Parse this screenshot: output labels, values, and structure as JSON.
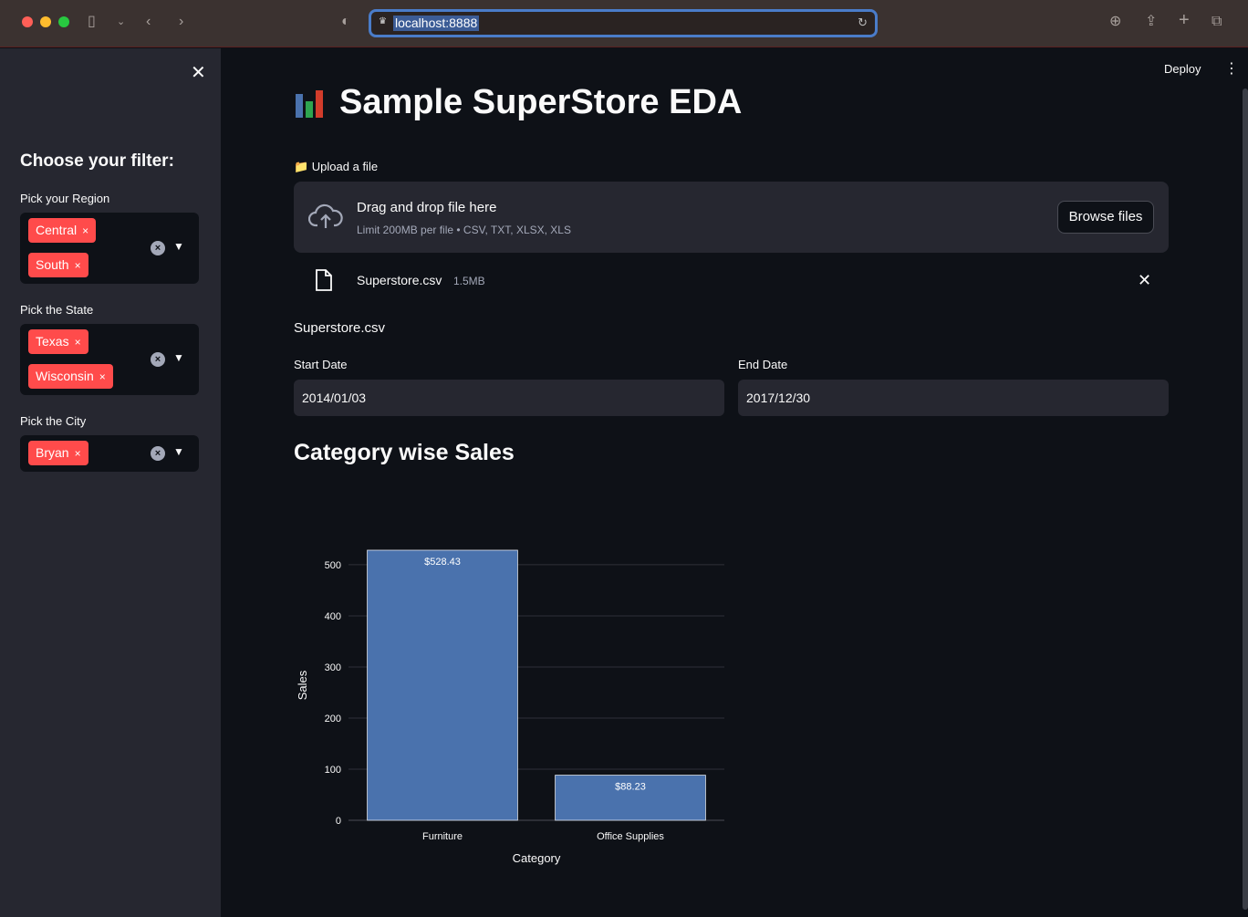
{
  "browser": {
    "url": "localhost:8888"
  },
  "sidebar": {
    "heading": "Choose your filter:",
    "filters": [
      {
        "label": "Pick your Region",
        "chips": [
          "Central",
          "South"
        ]
      },
      {
        "label": "Pick the State",
        "chips": [
          "Texas",
          "Wisconsin"
        ]
      },
      {
        "label": "Pick the City",
        "chips": [
          "Bryan"
        ]
      }
    ],
    "chip_remove": "×"
  },
  "header": {
    "deploy_label": "Deploy",
    "menu_glyph": "⋮"
  },
  "main": {
    "title": "Sample SuperStore EDA",
    "upload_label": "📁 Upload a file",
    "dropzone_title": "Drag and drop file here",
    "dropzone_subtitle": "Limit 200MB per file • CSV, TXT, XLSX, XLS",
    "browse_label": "Browse files",
    "file_name": "Superstore.csv",
    "file_size": "1.5MB",
    "file_caption": "Superstore.csv",
    "start_date_label": "Start Date",
    "start_date_value": "2014/01/03",
    "end_date_label": "End Date",
    "end_date_value": "2017/12/30",
    "chart_heading": "Category wise Sales"
  },
  "colors": {
    "accent_chip": "#ff4b4b",
    "bar": "#4a72ad",
    "background": "#0e1117",
    "sidebar": "#262730"
  },
  "chart_data": {
    "type": "bar",
    "categories": [
      "Furniture",
      "Office Supplies"
    ],
    "values": [
      528.43,
      88.23
    ],
    "data_labels": [
      "$528.43",
      "$88.23"
    ],
    "xlabel": "Category",
    "ylabel": "Sales",
    "ylim": [
      0,
      528.43
    ],
    "yticks": [
      0,
      100,
      200,
      300,
      400,
      500
    ],
    "grid": true
  }
}
